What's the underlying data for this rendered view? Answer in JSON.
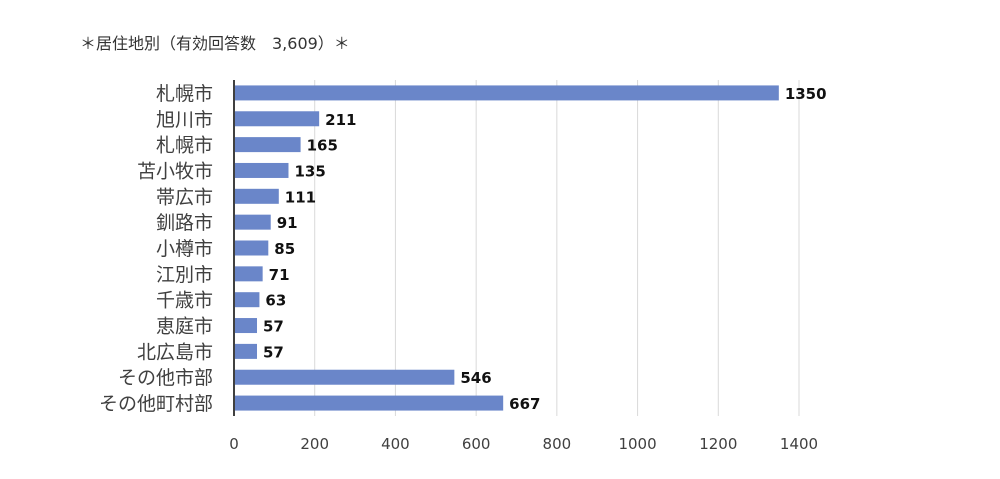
{
  "caption": "＊居住地別（有効回答数　3,609）＊",
  "chart_data": {
    "type": "bar",
    "orientation": "horizontal",
    "title": "",
    "xlabel": "",
    "ylabel": "",
    "categories": [
      "札幌市",
      "旭川市",
      "札幌市",
      "苫小牧市",
      "帯広市",
      "釧路市",
      "小樽市",
      "江別市",
      "千歳市",
      "恵庭市",
      "北広島市",
      "その他市部",
      "その他町村部"
    ],
    "values": [
      1350,
      211,
      165,
      135,
      111,
      91,
      85,
      71,
      63,
      57,
      57,
      546,
      667
    ],
    "xlim": [
      0,
      1400
    ],
    "xticks": [
      0,
      200,
      400,
      600,
      800,
      1000,
      1200,
      1400
    ],
    "grid": true,
    "legend": "none",
    "colors": {
      "bar": "#6A86C9",
      "grid": "#D9D9D9",
      "axis": "#404040"
    }
  }
}
